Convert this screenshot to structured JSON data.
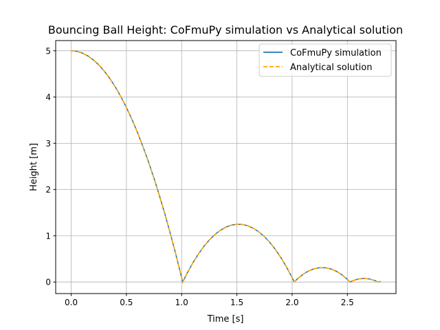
{
  "chart_data": {
    "type": "line",
    "title": "Bouncing Ball Height: CoFmuPy simulation vs Analytical solution",
    "xlabel": "Time [s]",
    "ylabel": "Height [m]",
    "xlim": [
      -0.14,
      2.94
    ],
    "ylim": [
      -0.25,
      5.22
    ],
    "xticks": [
      0,
      0.5,
      1,
      1.5,
      2,
      2.5
    ],
    "xtick_labels": [
      "0.0",
      "0.5",
      "1.0",
      "1.5",
      "2.0",
      "2.5"
    ],
    "yticks": [
      0,
      1,
      2,
      3,
      4,
      5
    ],
    "ytick_labels": [
      "0",
      "1",
      "2",
      "3",
      "4",
      "5"
    ],
    "grid": true,
    "legend_position": "top-right",
    "x": [
      0,
      0.05,
      0.1,
      0.15,
      0.2,
      0.25,
      0.3,
      0.35,
      0.4,
      0.45,
      0.5,
      0.55,
      0.6,
      0.65,
      0.7,
      0.75,
      0.8,
      0.85,
      0.9,
      0.95,
      1.0,
      1.0096,
      1.05,
      1.1,
      1.15,
      1.2,
      1.25,
      1.3,
      1.35,
      1.4,
      1.45,
      1.5,
      1.55,
      1.6,
      1.65,
      1.7,
      1.75,
      1.8,
      1.85,
      1.9,
      1.95,
      2.0,
      2.0192,
      2.05,
      2.1,
      2.15,
      2.2,
      2.25,
      2.3,
      2.35,
      2.4,
      2.45,
      2.5,
      2.524,
      2.55,
      2.6,
      2.65,
      2.7,
      2.75,
      2.7764,
      2.8
    ],
    "series": [
      {
        "name": "CoFmuPy simulation",
        "color": "#1f77b4",
        "style": "solid",
        "values": [
          5,
          4.9877,
          4.951,
          4.8896,
          4.8038,
          4.6934,
          4.5586,
          4.3991,
          4.2152,
          4.0067,
          3.7738,
          3.5162,
          3.2342,
          2.9276,
          2.5966,
          2.2409,
          1.8608,
          1.4561,
          1.027,
          0.5732,
          0.095,
          0,
          0.1921,
          0.4076,
          0.5986,
          0.7652,
          0.9071,
          1.0245,
          1.1174,
          1.1859,
          1.2298,
          1.2491,
          1.2439,
          1.2142,
          1.16,
          1.0812,
          0.9779,
          0.8502,
          0.6978,
          0.521,
          0.3196,
          0.0938,
          0,
          0.0716,
          0.1681,
          0.24,
          0.2874,
          0.3102,
          0.3086,
          0.2824,
          0.2317,
          0.1565,
          0.0567,
          0,
          0.0289,
          0.0658,
          0.0781,
          0.066,
          0.0293,
          0,
          0.0119
        ]
      },
      {
        "name": "Analytical solution",
        "color": "#ffa500",
        "style": "dashed",
        "values": [
          5,
          4.9877,
          4.951,
          4.8896,
          4.8038,
          4.6934,
          4.5586,
          4.3991,
          4.2152,
          4.0067,
          3.7738,
          3.5162,
          3.2342,
          2.9276,
          2.5966,
          2.2409,
          1.8608,
          1.4561,
          1.027,
          0.5732,
          0.095,
          0,
          0.1921,
          0.4076,
          0.5986,
          0.7652,
          0.9071,
          1.0245,
          1.1174,
          1.1859,
          1.2298,
          1.2491,
          1.2439,
          1.2142,
          1.16,
          1.0812,
          0.9779,
          0.8502,
          0.6978,
          0.521,
          0.3196,
          0.0938,
          0,
          0.0716,
          0.1681,
          0.24,
          0.2874,
          0.3102,
          0.3086,
          0.2824,
          0.2317,
          0.1565,
          0.0567,
          0,
          0.0289,
          0.0658,
          0.0781,
          0.066,
          0.0293,
          0,
          0.0119
        ]
      }
    ]
  }
}
